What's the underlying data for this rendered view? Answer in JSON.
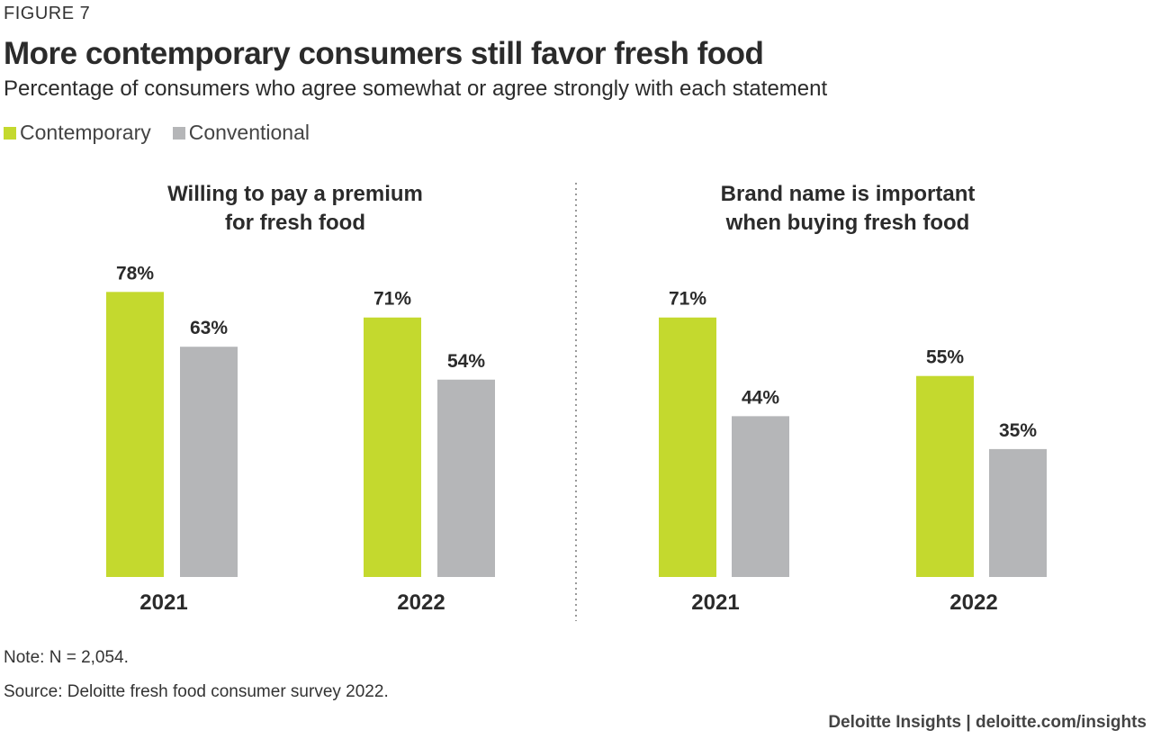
{
  "figure_label": "FIGURE 7",
  "title": "More contemporary consumers still favor fresh food",
  "subtitle": "Percentage of consumers who agree somewhat or agree strongly with each statement",
  "legend": [
    {
      "name": "Contemporary",
      "color": "#c4d92e"
    },
    {
      "name": "Conventional",
      "color": "#b5b6b8"
    }
  ],
  "note": "Note: N = 2,054.",
  "source": "Source: Deloitte fresh food consumer survey 2022.",
  "footer": "Deloitte Insights | deloitte.com/insights",
  "chart_data": [
    {
      "type": "bar",
      "title": [
        "Willing to pay a premium",
        "for fresh food"
      ],
      "categories": [
        "2021",
        "2022"
      ],
      "series": [
        {
          "name": "Contemporary",
          "values": [
            78,
            71
          ],
          "labels": [
            "78%",
            "71%"
          ]
        },
        {
          "name": "Conventional",
          "values": [
            63,
            54
          ],
          "labels": [
            "63%",
            "54%"
          ]
        }
      ],
      "ylim": [
        0,
        100
      ],
      "legend_position": "top-left",
      "grid": false
    },
    {
      "type": "bar",
      "title": [
        "Brand name is important",
        "when buying fresh food"
      ],
      "categories": [
        "2021",
        "2022"
      ],
      "series": [
        {
          "name": "Contemporary",
          "values": [
            71,
            55
          ],
          "labels": [
            "71%",
            "55%"
          ]
        },
        {
          "name": "Conventional",
          "values": [
            44,
            35
          ],
          "labels": [
            "44%",
            "35%"
          ]
        }
      ],
      "ylim": [
        0,
        100
      ],
      "legend_position": "top-left",
      "grid": false
    }
  ]
}
